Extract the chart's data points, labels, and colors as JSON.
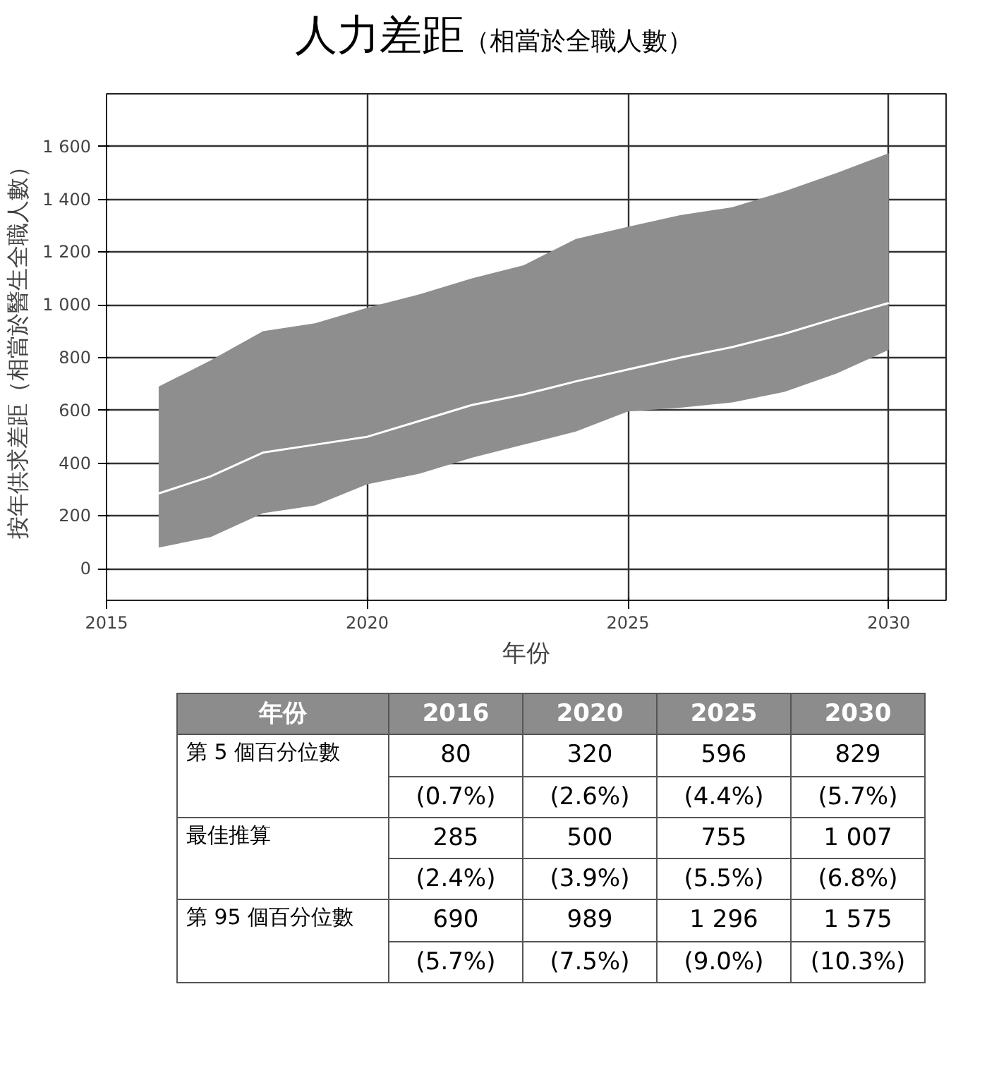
{
  "chart_data": [
    {
      "type": "line",
      "title": "人力差距",
      "subtitle": "（相當於全職人數）",
      "xlabel": "年份",
      "ylabel": "按年供求差距（相當於醫生全職人數）",
      "x": [
        2016,
        2017,
        2018,
        2019,
        2020,
        2021,
        2022,
        2023,
        2024,
        2025,
        2026,
        2027,
        2028,
        2029,
        2030
      ],
      "colors": [
        "#8e8e8e"
      ],
      "series": [
        {
          "color": "#ffffff",
          "values": [
            285,
            350,
            440,
            470,
            500,
            560,
            620,
            660,
            710,
            755,
            800,
            840,
            890,
            950,
            1007
          ],
          "lower": [
            80,
            120,
            210,
            240,
            320,
            360,
            420,
            470,
            520,
            596,
            610,
            630,
            670,
            740,
            829
          ],
          "upper": [
            690,
            790,
            900,
            930,
            989,
            1040,
            1100,
            1150,
            1250,
            1296,
            1340,
            1370,
            1430,
            1500,
            1575
          ]
        }
      ],
      "xlim": [
        2015,
        2031.1
      ],
      "ylim": [
        -120,
        1800
      ],
      "xticks": [
        2015,
        2020,
        2025,
        2030
      ],
      "yticks": [
        0,
        200,
        400,
        600,
        800,
        {
          "value": 1000,
          "label": "1 000"
        },
        {
          "value": 1200,
          "label": "1 200"
        },
        {
          "value": 1400,
          "label": "1 400"
        },
        {
          "value": 1600,
          "label": "1 600"
        }
      ],
      "grid": true
    },
    {
      "type": "other",
      "ylabel": "年份",
      "categories": [
        "2016",
        "2020",
        "2025",
        "2030"
      ],
      "y_categories": [
        "第 5 個百分位數",
        null,
        "最佳推算",
        null,
        "第 95 個百分位數",
        null
      ],
      "cell_labels": [
        [
          "80",
          "320",
          "596",
          "829"
        ],
        [
          "(0.7%)",
          "(2.6%)",
          "(4.4%)",
          "(5.7%)"
        ],
        [
          "285",
          "500",
          "755",
          "1 007"
        ],
        [
          "(2.4%)",
          "(3.9%)",
          "(5.5%)",
          "(6.8%)"
        ],
        [
          "690",
          "989",
          "1 296",
          "1 575"
        ],
        [
          "(5.7%)",
          "(7.5%)",
          "(9.0%)",
          "(10.3%)"
        ]
      ]
    }
  ]
}
